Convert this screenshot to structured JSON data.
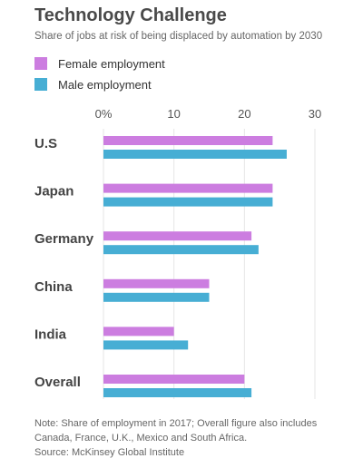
{
  "title": "Technology Challenge",
  "subtitle": "Share of jobs at risk of being displaced by automation by 2030",
  "legend": [
    {
      "label": "Female employment",
      "color": "#cc7de0"
    },
    {
      "label": "Male employment",
      "color": "#47aed4"
    }
  ],
  "chart_data": {
    "type": "bar",
    "orientation": "horizontal",
    "categories": [
      "U.S",
      "Japan",
      "Germany",
      "China",
      "India",
      "Overall"
    ],
    "series": [
      {
        "name": "Female employment",
        "color": "#cc7de0",
        "values": [
          24,
          24,
          21,
          15,
          10,
          20
        ]
      },
      {
        "name": "Male employment",
        "color": "#47aed4",
        "values": [
          26,
          24,
          22,
          15,
          12,
          21
        ]
      }
    ],
    "xticks": [
      "0%",
      "10",
      "20",
      "30"
    ],
    "xlim": [
      0,
      30
    ],
    "grid": true,
    "legend_position": "top-left"
  },
  "footnote": {
    "line1": "Note: Share of employment in 2017; Overall figure also includes",
    "line2": "Canada, France, U.K., Mexico and South Africa.",
    "line3": "Source: McKinsey Global Institute"
  }
}
